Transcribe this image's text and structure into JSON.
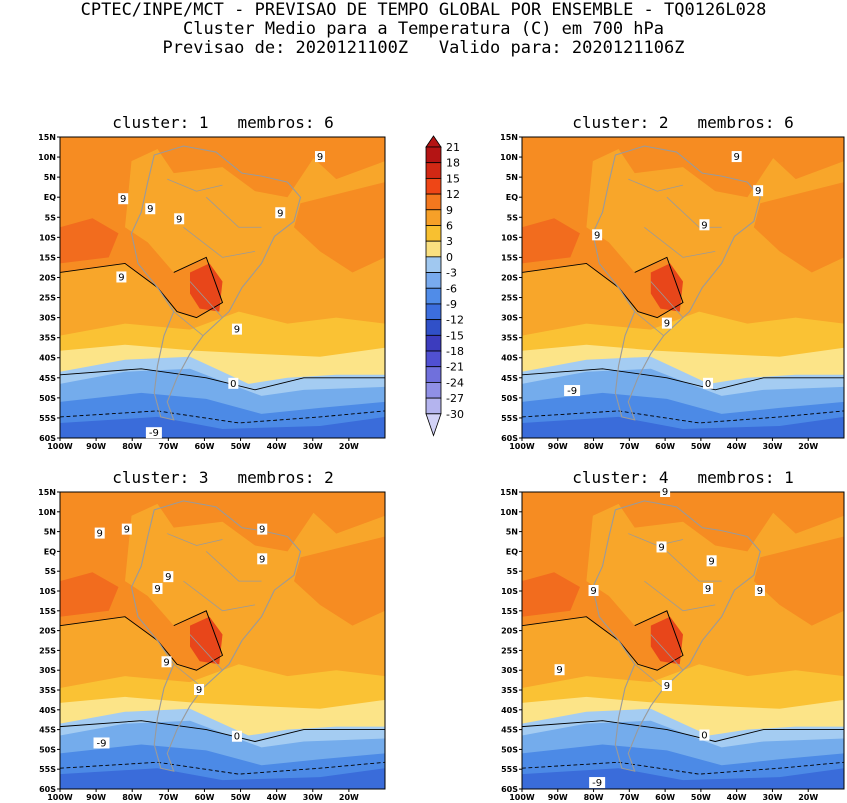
{
  "header": {
    "line1": "CPTEC/INPE/MCT - PREVISAO DE TEMPO GLOBAL POR ENSEMBLE - TQ0126L028",
    "line2": "Cluster Medio para a Temperatura (C) em 700 hPa",
    "line3": "Previsao de: 2020121100Z   Valido para: 2020121106Z"
  },
  "lat_ticks": [
    "15N",
    "10N",
    "5N",
    "EQ",
    "5S",
    "10S",
    "15S",
    "20S",
    "25S",
    "30S",
    "35S",
    "40S",
    "45S",
    "50S",
    "55S",
    "60S"
  ],
  "lon_ticks": [
    "100W",
    "90W",
    "80W",
    "70W",
    "60W",
    "50W",
    "40W",
    "30W",
    "20W"
  ],
  "colorbar": {
    "labels": [
      "21",
      "18",
      "15",
      "12",
      "9",
      "6",
      "3",
      "0",
      "-3",
      "-6",
      "-9",
      "-12",
      "-15",
      "-18",
      "-21",
      "-24",
      "-27",
      "-30"
    ],
    "colors": [
      "#b41414",
      "#d22814",
      "#ee4616",
      "#f4781e",
      "#f6a028",
      "#f8c030",
      "#fae080",
      "#a0c8f0",
      "#78aaee",
      "#508ce8",
      "#3c6ede",
      "#3050c8",
      "#3c3cbe",
      "#5050d2",
      "#7070dc",
      "#9090e6",
      "#b4b4ee",
      "#d2d2f6"
    ]
  },
  "panels": [
    {
      "title": "cluster: 1   membros: 6",
      "labels": [
        {
          "t": "9",
          "lon": -82.5,
          "lat": -0.5
        },
        {
          "t": "9",
          "lon": -75,
          "lat": -3
        },
        {
          "t": "9",
          "lon": -67,
          "lat": -5.5
        },
        {
          "t": "9",
          "lon": -39,
          "lat": -4
        },
        {
          "t": "9",
          "lon": -28,
          "lat": 10
        },
        {
          "t": "9",
          "lon": -83,
          "lat": -20
        },
        {
          "t": "9",
          "lon": -51,
          "lat": -33
        },
        {
          "t": "0",
          "lon": -52,
          "lat": -46.5
        },
        {
          "t": "-9",
          "lon": -74,
          "lat": -58.8
        }
      ]
    },
    {
      "title": "cluster: 2   membros: 6",
      "labels": [
        {
          "t": "9",
          "lon": -40,
          "lat": 10
        },
        {
          "t": "9",
          "lon": -34,
          "lat": 1.5
        },
        {
          "t": "9",
          "lon": -49,
          "lat": -7
        },
        {
          "t": "9",
          "lon": -79,
          "lat": -9.5
        },
        {
          "t": "9",
          "lon": -59.5,
          "lat": -31.5
        },
        {
          "t": "0",
          "lon": -48,
          "lat": -46.5
        },
        {
          "t": "-9",
          "lon": -86,
          "lat": -48.3
        }
      ]
    },
    {
      "title": "cluster: 3   membros: 2",
      "labels": [
        {
          "t": "9",
          "lon": -89,
          "lat": 4.5
        },
        {
          "t": "9",
          "lon": -81.5,
          "lat": 5.5
        },
        {
          "t": "9",
          "lon": -44,
          "lat": 5.5
        },
        {
          "t": "9",
          "lon": -44,
          "lat": -2
        },
        {
          "t": "9",
          "lon": -70,
          "lat": -6.5
        },
        {
          "t": "9",
          "lon": -73,
          "lat": -9.5
        },
        {
          "t": "9",
          "lon": -70.5,
          "lat": -28
        },
        {
          "t": "9",
          "lon": -61.5,
          "lat": -35
        },
        {
          "t": "0",
          "lon": -51,
          "lat": -46.8
        },
        {
          "t": "-9",
          "lon": -88.5,
          "lat": -48.5
        }
      ]
    },
    {
      "title": "cluster: 4   membros: 1",
      "labels": [
        {
          "t": "9",
          "lon": -60,
          "lat": 15
        },
        {
          "t": "9",
          "lon": -61,
          "lat": 1
        },
        {
          "t": "9",
          "lon": -47,
          "lat": -2.5
        },
        {
          "t": "9",
          "lon": -48,
          "lat": -9.5
        },
        {
          "t": "9",
          "lon": -80,
          "lat": -10
        },
        {
          "t": "9",
          "lon": -33.5,
          "lat": -10
        },
        {
          "t": "9",
          "lon": -89.5,
          "lat": -30
        },
        {
          "t": "9",
          "lon": -59.5,
          "lat": -34
        },
        {
          "t": "0",
          "lon": -49,
          "lat": -46.5
        },
        {
          "t": "-9",
          "lon": -79,
          "lat": -58.5
        }
      ]
    }
  ]
}
